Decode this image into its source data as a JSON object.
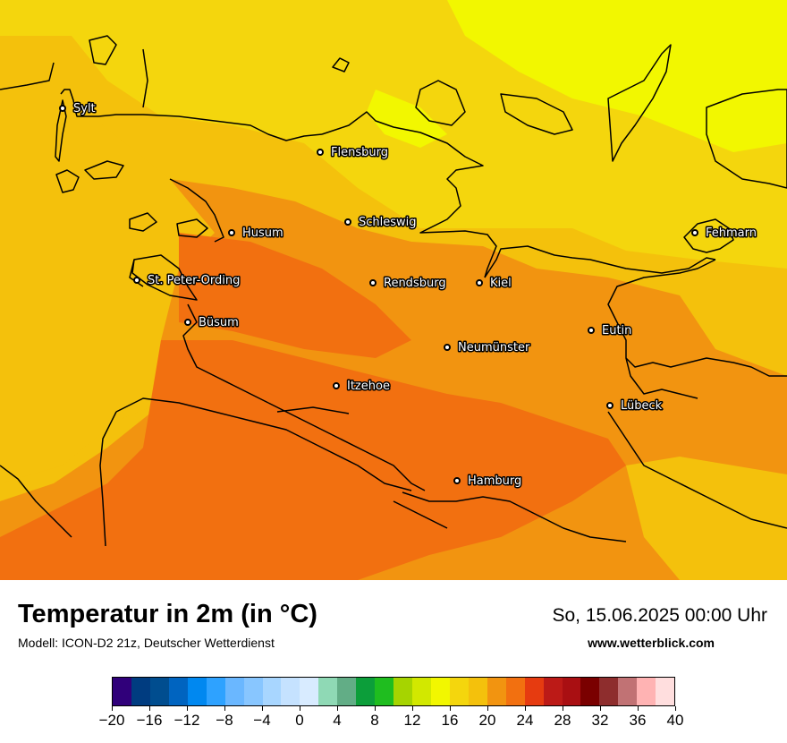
{
  "cities": [
    {
      "name": "Sylt"
    },
    {
      "name": "Flensburg"
    },
    {
      "name": "Schleswig"
    },
    {
      "name": "Husum"
    },
    {
      "name": "St. Peter-Ording"
    },
    {
      "name": "Büsum"
    },
    {
      "name": "Rendsburg"
    },
    {
      "name": "Kiel"
    },
    {
      "name": "Fehmarn"
    },
    {
      "name": "Eutin"
    },
    {
      "name": "Neumünster"
    },
    {
      "name": "Itzehoe"
    },
    {
      "name": "Lübeck"
    },
    {
      "name": "Hamburg"
    }
  ],
  "footer": {
    "title": "Temperatur in 2m (in °C)",
    "subtitle": "Modell: ICON-D2 21z, Deutscher Wetterdienst",
    "datetime": "So, 15.06.2025 00:00 Uhr",
    "website": "www.wetterblick.com"
  },
  "legend": {
    "min": -20,
    "max": 40,
    "step": 2,
    "colors": [
      "#30007a",
      "#003c80",
      "#004d8f",
      "#0064c0",
      "#0088f0",
      "#2ea2ff",
      "#6ab7ff",
      "#88c6ff",
      "#a8d6ff",
      "#c5e2ff",
      "#d8ebff",
      "#8fd9b5",
      "#62ad86",
      "#0c9e3a",
      "#1fbd1f",
      "#a6d400",
      "#d2e800",
      "#f2f700",
      "#f4d60d",
      "#f4c10c",
      "#f29410",
      "#f27010",
      "#e63b10",
      "#bc1a17",
      "#a90f12",
      "#7a0000",
      "#8e2d2d",
      "#c17274",
      "#ffb3b3",
      "#ffdede"
    ],
    "tick_labels": [
      "−20",
      "−16",
      "−12",
      "−8",
      "−4",
      "0",
      "4",
      "8",
      "12",
      "16",
      "20",
      "24",
      "28",
      "32",
      "36",
      "40"
    ]
  },
  "map": {
    "field_colors": {
      "t15": "#f2f700",
      "t16": "#f4d60d",
      "t17": "#f4c10c",
      "t18": "#f29410",
      "t19": "#f27010"
    }
  }
}
